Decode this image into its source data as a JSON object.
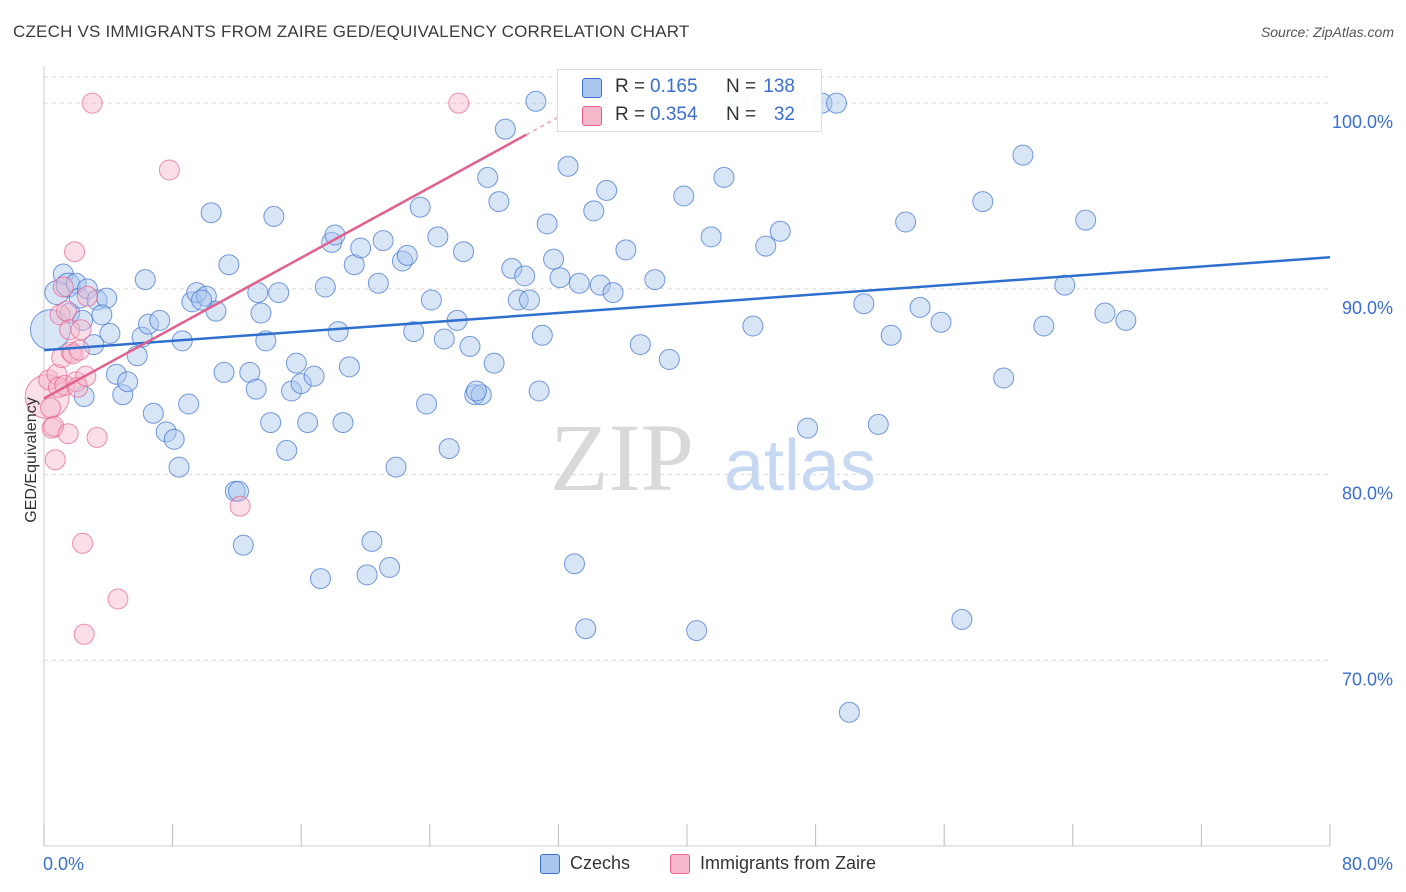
{
  "title": "CZECH VS IMMIGRANTS FROM ZAIRE GED/EQUIVALENCY CORRELATION CHART",
  "source": "Source: ZipAtlas.com",
  "watermark": {
    "zip": "ZIP",
    "atlas": "atlas"
  },
  "colors": {
    "blue": "#3a6fd0",
    "blue_fill": "#a9c6ee",
    "blue_line": "#2f6fce",
    "pink": "#e8608f",
    "pink_fill": "#f5b8cb",
    "pink_line": "#e0608e",
    "grid": "#d9d9d9",
    "axis_text": "#3a6fd0"
  },
  "legend_top": [
    {
      "r_label": "R =",
      "r_value": "0.165",
      "n_label": "N =",
      "n_value": "138"
    },
    {
      "r_label": "R =",
      "r_value": "0.354",
      "n_label": "N =",
      "n_value": "32"
    }
  ],
  "legend_bottom": [
    {
      "label": "Czechs"
    },
    {
      "label": "Immigrants from Zaire"
    }
  ],
  "chart_data": {
    "type": "scatter",
    "title": "CZECH VS IMMIGRANTS FROM ZAIRE GED/EQUIVALENCY CORRELATION CHART",
    "xlabel": "",
    "ylabel": "GED/Equivalency",
    "xlim": [
      0,
      80
    ],
    "ylim": [
      60,
      102
    ],
    "x_tick_labels": [
      "0.0%",
      "80.0%"
    ],
    "y_ticks": [
      70,
      80,
      90,
      100
    ],
    "y_tick_labels": [
      "70.0%",
      "80.0%",
      "90.0%",
      "100.0%"
    ],
    "grid": true,
    "legend_position": "top-center",
    "series": [
      {
        "name": "Czechs",
        "r": 0.165,
        "n": 138,
        "trend": {
          "x": [
            0,
            80
          ],
          "y": [
            86.7,
            91.7
          ]
        },
        "x": [
          0.4,
          0.8,
          1.2,
          1.5,
          1.6,
          2.0,
          2.2,
          2.4,
          2.7,
          3.1,
          3.3,
          3.9,
          4.1,
          4.5,
          4.9,
          5.2,
          5.8,
          6.1,
          6.5,
          6.8,
          7.2,
          7.6,
          8.1,
          8.4,
          8.6,
          9.0,
          9.2,
          9.5,
          10.1,
          10.4,
          10.7,
          11.2,
          11.5,
          11.9,
          12.1,
          12.4,
          12.8,
          13.2,
          13.5,
          13.8,
          14.1,
          14.3,
          14.6,
          15.1,
          15.4,
          15.7,
          16.0,
          16.4,
          16.8,
          17.2,
          17.5,
          17.9,
          18.3,
          18.6,
          19.0,
          19.3,
          19.7,
          20.1,
          20.4,
          20.8,
          21.1,
          21.5,
          21.9,
          22.3,
          22.6,
          23.0,
          23.4,
          23.8,
          24.1,
          24.5,
          24.9,
          25.2,
          25.7,
          26.1,
          26.5,
          26.8,
          27.2,
          27.6,
          28.0,
          28.3,
          28.7,
          29.1,
          29.5,
          29.9,
          30.2,
          30.6,
          31.0,
          31.3,
          31.7,
          32.1,
          32.6,
          33.0,
          33.3,
          33.7,
          34.2,
          34.6,
          35.0,
          35.4,
          36.2,
          37.1,
          38.0,
          38.9,
          39.8,
          40.6,
          41.5,
          42.3,
          43.2,
          44.1,
          44.9,
          45.8,
          46.7,
          47.5,
          48.4,
          49.3,
          50.1,
          51.0,
          51.9,
          52.7,
          53.6,
          54.5,
          55.8,
          57.1,
          58.4,
          59.7,
          60.9,
          62.2,
          63.5,
          64.8,
          66.0,
          67.3,
          2.5,
          3.6,
          6.3,
          9.8,
          13.3,
          18.1,
          26.9,
          30.8
        ],
        "y": [
          87.8,
          89.8,
          90.8,
          90.2,
          88.7,
          90.3,
          89.5,
          88.3,
          90.0,
          87.0,
          89.4,
          89.5,
          87.6,
          85.4,
          84.3,
          85.0,
          86.4,
          87.4,
          88.1,
          83.3,
          88.3,
          82.3,
          81.9,
          80.4,
          87.2,
          83.8,
          89.3,
          89.8,
          89.6,
          94.1,
          88.8,
          85.5,
          91.3,
          79.1,
          79.1,
          76.2,
          85.5,
          84.6,
          88.7,
          87.2,
          82.8,
          93.9,
          89.8,
          81.3,
          84.5,
          86.0,
          84.9,
          82.8,
          85.3,
          74.4,
          90.1,
          92.5,
          87.7,
          82.8,
          85.8,
          91.3,
          92.2,
          74.6,
          76.4,
          90.3,
          92.6,
          75.0,
          80.4,
          91.5,
          91.8,
          87.7,
          94.4,
          83.8,
          89.4,
          92.8,
          87.3,
          81.4,
          88.3,
          92.0,
          86.9,
          84.3,
          84.3,
          96.0,
          86.0,
          94.7,
          98.6,
          91.1,
          89.4,
          90.7,
          89.4,
          100.1,
          87.5,
          93.5,
          91.6,
          90.6,
          96.6,
          75.2,
          90.3,
          71.7,
          94.2,
          90.2,
          95.3,
          89.8,
          92.1,
          87.0,
          90.5,
          86.2,
          95.0,
          71.6,
          92.8,
          96.0,
          100.0,
          88.0,
          92.3,
          93.1,
          100.0,
          82.5,
          100.0,
          100.0,
          67.2,
          89.2,
          82.7,
          87.5,
          93.6,
          89.0,
          88.2,
          72.2,
          94.7,
          85.2,
          97.2,
          88.0,
          90.2,
          93.7,
          88.7,
          88.3,
          84.2,
          88.6,
          90.5,
          89.4,
          89.8,
          92.9,
          84.5,
          84.5
        ],
        "sizes": [
          20,
          12,
          10,
          12,
          10,
          10,
          10,
          10,
          10,
          10,
          10,
          10,
          10,
          10,
          10,
          10,
          10,
          10,
          10,
          10,
          10,
          10,
          10,
          10,
          10,
          10,
          10,
          10,
          10,
          10,
          10,
          10,
          10,
          10,
          10,
          10,
          10,
          10,
          10,
          10,
          10,
          10,
          10,
          10,
          10,
          10,
          10,
          10,
          10,
          10,
          10,
          10,
          10,
          10,
          10,
          10,
          10,
          10,
          10,
          10,
          10,
          10,
          10,
          10,
          10,
          10,
          10,
          10,
          10,
          10,
          10,
          10,
          10,
          10,
          10,
          10,
          10,
          10,
          10,
          10,
          10,
          10,
          10,
          10,
          10,
          10,
          10,
          10,
          10,
          10,
          10,
          10,
          10,
          10,
          10,
          10,
          10,
          10,
          10,
          10,
          10,
          10,
          10,
          10,
          10,
          10,
          10,
          10,
          10,
          10,
          10,
          10,
          10,
          10,
          10,
          10,
          10,
          10,
          10,
          10,
          10,
          10,
          10,
          10,
          10,
          10,
          10,
          10,
          10,
          10,
          10,
          10,
          10,
          10,
          10,
          10,
          10,
          10
        ]
      },
      {
        "name": "Immigrants from Zaire",
        "r": 0.354,
        "n": 32,
        "trend": {
          "x": [
            0,
            30
          ],
          "y": 84.1,
          "y_end": 98.3
        },
        "x": [
          0.2,
          0.3,
          0.4,
          0.5,
          0.6,
          0.7,
          0.8,
          0.9,
          1.0,
          1.1,
          1.2,
          1.3,
          1.4,
          1.5,
          1.6,
          1.7,
          1.8,
          1.9,
          2.0,
          2.1,
          2.2,
          2.3,
          2.4,
          2.5,
          2.6,
          2.7,
          3.0,
          3.3,
          4.6,
          7.8,
          12.2,
          25.8
        ],
        "y": [
          84.2,
          85.1,
          83.6,
          82.5,
          82.6,
          80.8,
          85.4,
          84.7,
          88.6,
          86.3,
          90.1,
          84.8,
          88.8,
          82.2,
          87.8,
          86.6,
          86.5,
          92.0,
          85.0,
          84.7,
          86.7,
          87.8,
          76.3,
          71.4,
          85.3,
          89.6,
          100.0,
          82.0,
          73.3,
          96.4,
          78.3,
          100.0
        ],
        "sizes": [
          22,
          10,
          10,
          10,
          10,
          10,
          10,
          10,
          10,
          10,
          10,
          10,
          10,
          10,
          10,
          10,
          10,
          10,
          10,
          10,
          10,
          10,
          10,
          10,
          10,
          10,
          10,
          10,
          10,
          10,
          10,
          10
        ]
      }
    ]
  }
}
